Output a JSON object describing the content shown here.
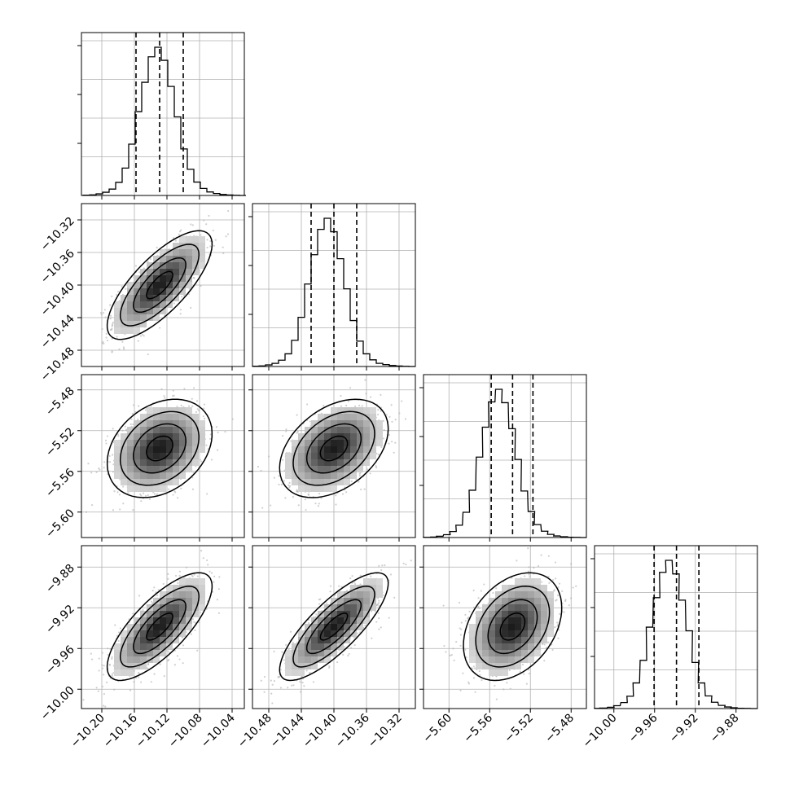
{
  "chart_data": {
    "type": "corner",
    "parameters": [
      {
        "range": [
          -10.225,
          -10.025
        ],
        "hist_centers": [
          -10.219,
          -10.211,
          -10.203,
          -10.195,
          -10.187,
          -10.179,
          -10.171,
          -10.163,
          -10.155,
          -10.147,
          -10.139,
          -10.131,
          -10.123,
          -10.115,
          -10.107,
          -10.099,
          -10.091,
          -10.083,
          -10.075,
          -10.067,
          -10.059,
          -10.051,
          -10.043,
          -10.035,
          -10.027
        ],
        "hist_counts": [
          2,
          4,
          10,
          20,
          40,
          82,
          172,
          322,
          526,
          710,
          870,
          930,
          848,
          684,
          493,
          292,
          164,
          84,
          44,
          22,
          12,
          6,
          3,
          1,
          0
        ],
        "quantiles": [
          -10.158,
          -10.129,
          -10.1
        ],
        "ticks": [
          -10.2,
          -10.16,
          -10.12,
          -10.08,
          -10.04
        ],
        "tick_labels": [
          "−10.20",
          "−10.16",
          "−10.12",
          "−10.08",
          "−10.04"
        ]
      },
      {
        "range": [
          -10.5,
          -10.3
        ],
        "hist_centers": [
          -10.496,
          -10.488,
          -10.48,
          -10.472,
          -10.464,
          -10.456,
          -10.448,
          -10.44,
          -10.432,
          -10.424,
          -10.416,
          -10.408,
          -10.4,
          -10.392,
          -10.384,
          -10.376,
          -10.368,
          -10.36,
          -10.352,
          -10.344,
          -10.336,
          -10.328,
          -10.32,
          -10.312,
          -10.304
        ],
        "hist_counts": [
          2,
          4,
          10,
          20,
          40,
          80,
          165,
          310,
          520,
          705,
          865,
          935,
          850,
          680,
          490,
          290,
          160,
          80,
          42,
          20,
          12,
          6,
          3,
          1,
          0
        ],
        "quantiles": [
          -10.428,
          -10.4,
          -10.372
        ],
        "ticks": [
          -10.48,
          -10.44,
          -10.4,
          -10.36,
          -10.32
        ],
        "tick_labels": [
          "−10.48",
          "−10.44",
          "−10.40",
          "−10.36",
          "−10.32"
        ]
      },
      {
        "range": [
          -5.625,
          -5.465
        ],
        "hist_centers": [
          -5.622,
          -5.615,
          -5.609,
          -5.602,
          -5.596,
          -5.59,
          -5.583,
          -5.577,
          -5.57,
          -5.564,
          -5.558,
          -5.551,
          -5.545,
          -5.538,
          -5.532,
          -5.526,
          -5.519,
          -5.513,
          -5.506,
          -5.5,
          -5.494,
          -5.487,
          -5.481,
          -5.474,
          -5.468
        ],
        "hist_counts": [
          1,
          3,
          8,
          18,
          38,
          78,
          160,
          300,
          510,
          700,
          860,
          940,
          855,
          690,
          495,
          295,
          165,
          82,
          40,
          20,
          10,
          5,
          2,
          1,
          0
        ],
        "quantiles": [
          -5.5585,
          -5.5375,
          -5.5175
        ],
        "ticks": [
          -5.6,
          -5.56,
          -5.52,
          -5.48
        ],
        "tick_labels": [
          "−5.60",
          "−5.56",
          "−5.52",
          "−5.48"
        ]
      },
      {
        "range": [
          -10.019,
          -9.859
        ],
        "hist_centers": [
          -10.016,
          -10.01,
          -10.003,
          -9.997,
          -9.99,
          -9.984,
          -9.978,
          -9.971,
          -9.965,
          -9.958,
          -9.952,
          -9.946,
          -9.939,
          -9.933,
          -9.926,
          -9.92,
          -9.914,
          -9.907,
          -9.901,
          -9.894,
          -9.888,
          -9.882,
          -9.875,
          -9.869,
          -9.862
        ],
        "hist_counts": [
          1,
          3,
          8,
          18,
          38,
          78,
          162,
          305,
          515,
          702,
          862,
          938,
          852,
          686,
          492,
          292,
          162,
          80,
          40,
          20,
          10,
          5,
          2,
          1,
          0
        ],
        "quantiles": [
          -9.9605,
          -9.9385,
          -9.9165
        ],
        "ticks": [
          -10.0,
          -9.96,
          -9.92,
          -9.88
        ],
        "tick_labels": [
          "−10.00",
          "−9.96",
          "−9.92",
          "−9.88"
        ]
      }
    ],
    "pairs": [
      {
        "row": 1,
        "col": 0,
        "mean": [
          -10.129,
          -10.4
        ],
        "sd": [
          0.028,
          0.029
        ],
        "corr": 0.75
      },
      {
        "row": 2,
        "col": 0,
        "mean": [
          -10.129,
          -5.5375
        ],
        "sd": [
          0.028,
          0.021
        ],
        "corr": 0.3
      },
      {
        "row": 2,
        "col": 1,
        "mean": [
          -10.4,
          -5.5375
        ],
        "sd": [
          0.029,
          0.021
        ],
        "corr": 0.4
      },
      {
        "row": 3,
        "col": 0,
        "mean": [
          -10.129,
          -9.9385
        ],
        "sd": [
          0.028,
          0.023
        ],
        "corr": 0.75
      },
      {
        "row": 3,
        "col": 1,
        "mean": [
          -10.4,
          -9.9385
        ],
        "sd": [
          0.029,
          0.023
        ],
        "corr": 0.8
      },
      {
        "row": 3,
        "col": 2,
        "mean": [
          -5.5375,
          -9.9385
        ],
        "sd": [
          0.021,
          0.023
        ],
        "corr": 0.35
      }
    ],
    "contour_levels_sigma": [
      0.5,
      1.0,
      1.5,
      2.0
    ],
    "grid": true,
    "legend": "none",
    "colors": {
      "histogram": "#000000",
      "contour": "#000000",
      "points": "#b0b0b0",
      "density_dark": "#1a1a1a",
      "density_light": "#f2f2f2",
      "grid": "#b0b0b0"
    }
  }
}
